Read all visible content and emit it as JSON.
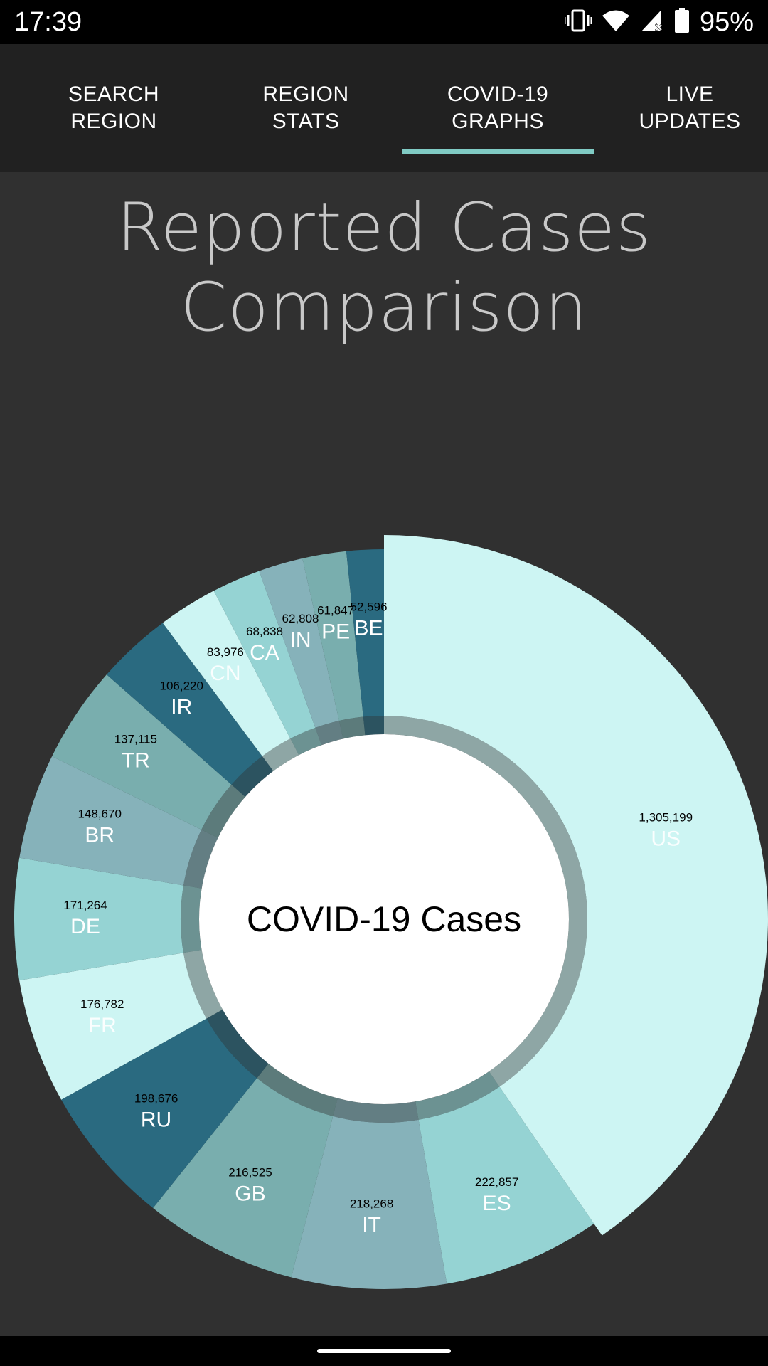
{
  "status_bar": {
    "time": "17:39",
    "battery": "95%",
    "icons": [
      "vibrate-icon",
      "wifi-icon",
      "cell-signal-icon",
      "battery-icon"
    ]
  },
  "tabs": [
    {
      "label": "SEARCH REGION",
      "selected": false
    },
    {
      "label": "REGION STATS",
      "selected": false
    },
    {
      "label": "COVID-19 GRAPHS",
      "selected": true
    },
    {
      "label": "LIVE UPDATES",
      "selected": false
    }
  ],
  "page": {
    "title": "Reported Cases Comparison"
  },
  "colors": {
    "background": "#303030",
    "tab_bar": "#212121",
    "tab_indicator": "#80cbc4"
  },
  "chart_data": {
    "type": "pie",
    "variant": "donut",
    "center_text": "COVID-19 Cases",
    "highlighted": "US",
    "slices": [
      {
        "label": "US",
        "value": 1305199,
        "value_text": "1,305,199",
        "color": "#cdf5f3"
      },
      {
        "label": "ES",
        "value": 222857,
        "value_text": "222,857",
        "color": "#95d3d3"
      },
      {
        "label": "IT",
        "value": 218268,
        "value_text": "218,268",
        "color": "#86b2ba"
      },
      {
        "label": "GB",
        "value": 216525,
        "value_text": "216,525",
        "color": "#79aeae"
      },
      {
        "label": "RU",
        "value": 198676,
        "value_text": "198,676",
        "color": "#2a6a80"
      },
      {
        "label": "FR",
        "value": 176782,
        "value_text": "176,782",
        "color": "#cdf5f3"
      },
      {
        "label": "DE",
        "value": 171264,
        "value_text": "171,264",
        "color": "#95d3d3"
      },
      {
        "label": "BR",
        "value": 148670,
        "value_text": "148,670",
        "color": "#86b2ba"
      },
      {
        "label": "TR",
        "value": 137115,
        "value_text": "137,115",
        "color": "#79aeae"
      },
      {
        "label": "IR",
        "value": 106220,
        "value_text": "106,220",
        "color": "#2a6a80"
      },
      {
        "label": "CN",
        "value": 83976,
        "value_text": "83,976",
        "color": "#cdf5f3"
      },
      {
        "label": "CA",
        "value": 68838,
        "value_text": "68,838",
        "color": "#95d3d3"
      },
      {
        "label": "IN",
        "value": 62808,
        "value_text": "62,808",
        "color": "#86b2ba"
      },
      {
        "label": "PE",
        "value": 61847,
        "value_text": "61,847",
        "color": "#79aeae"
      },
      {
        "label": "BE",
        "value": 52596,
        "value_text": "52,596",
        "color": "#2a6a80"
      }
    ]
  }
}
